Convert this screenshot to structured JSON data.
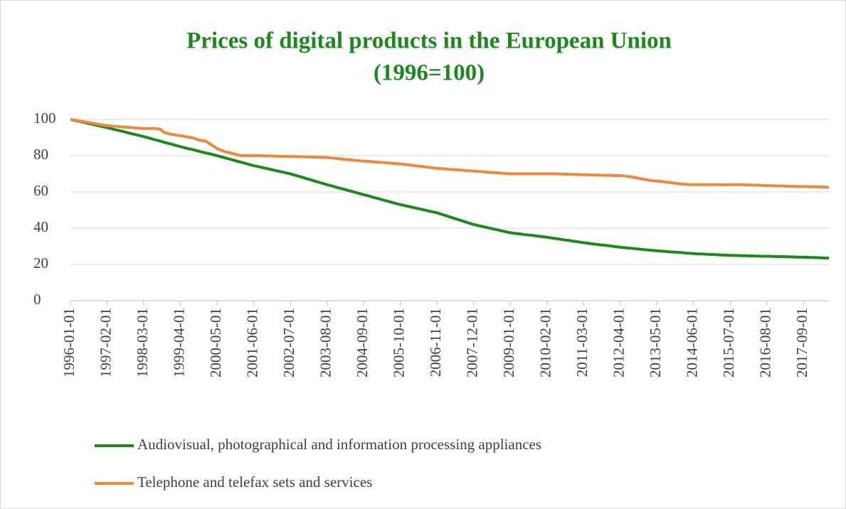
{
  "chart_data": {
    "type": "line",
    "title": "Prices of digital products in the European Union",
    "subtitle": "(1996=100)",
    "categories": [
      "1996-01-01",
      null,
      null,
      null,
      null,
      null,
      null,
      null,
      null,
      null,
      null,
      null,
      null,
      "1997-02-01",
      null,
      null,
      null,
      null,
      null,
      null,
      null,
      null,
      null,
      null,
      null,
      null,
      "1998-03-01",
      null,
      null,
      null,
      null,
      null,
      null,
      null,
      null,
      null,
      null,
      null,
      null,
      "1999-04-01",
      null,
      null,
      null,
      null,
      null,
      null,
      null,
      null,
      null,
      null,
      null,
      null,
      "2000-05-01",
      null,
      null,
      null,
      null,
      null,
      null,
      null,
      null,
      null,
      null,
      null,
      null,
      "2001-06-01",
      null,
      null,
      null,
      null,
      null,
      null,
      null,
      null,
      null,
      null,
      null,
      null,
      "2002-07-01",
      null,
      null,
      null,
      null,
      null,
      null,
      null,
      null,
      null,
      null,
      null,
      null,
      "2003-08-01",
      null,
      null,
      null,
      null,
      null,
      null,
      null,
      null,
      null,
      null,
      null,
      null,
      "2004-09-01",
      null,
      null,
      null,
      null,
      null,
      null,
      null,
      null,
      null,
      null,
      null,
      null,
      "2005-10-01",
      null,
      null,
      null,
      null,
      null,
      null,
      null,
      null,
      null,
      null,
      null,
      null,
      "2006-11-01",
      null,
      null,
      null,
      null,
      null,
      null,
      null,
      null,
      null,
      null,
      null,
      null,
      "2007-12-01",
      null,
      null,
      null,
      null,
      null,
      null,
      null,
      null,
      null,
      null,
      null,
      null,
      "2009-01-01",
      null,
      null,
      null,
      null,
      null,
      null,
      null,
      null,
      null,
      null,
      null,
      null,
      "2010-02-01",
      null,
      null,
      null,
      null,
      null,
      null,
      null,
      null,
      null,
      null,
      null,
      null,
      "2011-03-01",
      null,
      null,
      null,
      null,
      null,
      null,
      null,
      null,
      null,
      null,
      null,
      null,
      "2012-04-01",
      null,
      null,
      null,
      null,
      null,
      null,
      null,
      null,
      null,
      null,
      null,
      null,
      "2013-05-01",
      null,
      null,
      null,
      null,
      null,
      null,
      null,
      null,
      null,
      null,
      null,
      null,
      "2014-06-01",
      null,
      null,
      null,
      null,
      null,
      null,
      null,
      null,
      null,
      null,
      null,
      null,
      "2015-07-01",
      null,
      null,
      null,
      null,
      null,
      null,
      null,
      null,
      null,
      null,
      null,
      null,
      "2016-08-01",
      null,
      null,
      null,
      null,
      null,
      null,
      null,
      null,
      null,
      null,
      null,
      null,
      "2017-09-01",
      null,
      null,
      null,
      null,
      null,
      null,
      null,
      null,
      null
    ],
    "series": [
      {
        "name": "Audiovisual, photographical and information processing appliances",
        "color": "#1a8a1a",
        "values": [
          100,
          99.7,
          99.3,
          99,
          98.6,
          98.3,
          97.9,
          97.6,
          97.2,
          96.9,
          96.5,
          96.2,
          95.8,
          95.5,
          95.1,
          94.7,
          94.3,
          94,
          93.6,
          93.2,
          92.8,
          92.4,
          92,
          91.7,
          91.3,
          90.9,
          90.5,
          90.1,
          89.7,
          89.2,
          88.8,
          88.4,
          88,
          87.5,
          87.1,
          86.7,
          86.3,
          85.8,
          85.4,
          85,
          84.6,
          84.2,
          83.8,
          83.5,
          83.1,
          82.7,
          82.3,
          81.9,
          81.5,
          81.2,
          80.8,
          80.4,
          80,
          79.6,
          79.2,
          78.7,
          78.3,
          77.9,
          77.5,
          77,
          76.6,
          76.2,
          75.8,
          75.3,
          74.9,
          74.5,
          74.2,
          73.8,
          73.5,
          73.1,
          72.8,
          72.4,
          72.1,
          71.7,
          71.4,
          71,
          70.7,
          70.3,
          70,
          69.5,
          69.1,
          68.6,
          68.2,
          67.7,
          67.2,
          66.8,
          66.3,
          65.8,
          65.4,
          64.9,
          64.5,
          64,
          63.6,
          63.2,
          62.7,
          62.3,
          61.9,
          61.5,
          61,
          60.6,
          60.2,
          59.8,
          59.3,
          58.9,
          58.5,
          58.1,
          57.7,
          57.2,
          56.8,
          56.4,
          56,
          55.5,
          55.1,
          54.7,
          54.3,
          53.8,
          53.4,
          53,
          52.7,
          52.3,
          52,
          51.6,
          51.3,
          50.9,
          50.6,
          50.2,
          49.9,
          49.5,
          49.2,
          48.8,
          48.5,
          48,
          47.5,
          47,
          46.5,
          46,
          45.5,
          45,
          44.5,
          44,
          43.5,
          43,
          42.5,
          42,
          41.7,
          41.3,
          41,
          40.6,
          40.3,
          39.9,
          39.6,
          39.2,
          38.9,
          38.5,
          38.2,
          37.8,
          37.5,
          37.3,
          37.1,
          36.9,
          36.7,
          36.5,
          36.3,
          36.2,
          36,
          35.8,
          35.6,
          35.4,
          35.2,
          35,
          34.8,
          34.5,
          34.3,
          34.1,
          33.8,
          33.6,
          33.4,
          33.2,
          32.9,
          32.7,
          32.5,
          32.2,
          32,
          31.8,
          31.6,
          31.4,
          31.2,
          31,
          30.8,
          30.7,
          30.5,
          30.3,
          30.1,
          29.9,
          29.7,
          29.5,
          29.3,
          29.2,
          29,
          28.9,
          28.7,
          28.6,
          28.4,
          28.3,
          28.1,
          28,
          27.8,
          27.7,
          27.5,
          27.4,
          27.3,
          27.2,
          27,
          26.9,
          26.8,
          26.7,
          26.6,
          26.5,
          26.3,
          26.2,
          26.1,
          26,
          25.9,
          25.8,
          25.8,
          25.7,
          25.6,
          25.5,
          25.5,
          25.4,
          25.3,
          25.2,
          25.2,
          25.1,
          25,
          25,
          24.9,
          24.9,
          24.8,
          24.8,
          24.8,
          24.7,
          24.7,
          24.6,
          24.6,
          24.5,
          24.5,
          24.5,
          24.5,
          24.4,
          24.4,
          24.3,
          24.3,
          24.3,
          24.2,
          24.2,
          24.1,
          24.1,
          24,
          24,
          24,
          23.9,
          23.9,
          23.8,
          23.8,
          23.7,
          23.7,
          23.6,
          23.6,
          23.5
        ]
      },
      {
        "name": "Telephone and telefax sets and services",
        "color": "#f0883a",
        "values": [
          100,
          99.7,
          99.5,
          99.2,
          98.9,
          98.7,
          98.4,
          98.1,
          97.8,
          97.6,
          97.3,
          97,
          96.8,
          96.5,
          96.4,
          96.3,
          96.2,
          96.1,
          95.9,
          95.8,
          95.7,
          95.6,
          95.5,
          95.3,
          95.2,
          95.1,
          95,
          95,
          95,
          95,
          95,
          94.8,
          94.5,
          93,
          92.5,
          92,
          91.8,
          91.5,
          91.2,
          91,
          90.8,
          90.5,
          90.2,
          90,
          89.5,
          89,
          88.5,
          88.3,
          88,
          87,
          86,
          85,
          84,
          83.3,
          82.7,
          82.2,
          81.8,
          81.4,
          81,
          80.6,
          80.2,
          80,
          80,
          80,
          80,
          80,
          80,
          80,
          80,
          79.9,
          79.9,
          79.8,
          79.8,
          79.7,
          79.7,
          79.6,
          79.6,
          79.5,
          79.5,
          79.5,
          79.5,
          79.5,
          79.4,
          79.4,
          79.3,
          79.3,
          79.2,
          79.2,
          79.1,
          79.1,
          79,
          79,
          78.8,
          78.7,
          78.5,
          78.4,
          78.2,
          78,
          77.9,
          77.7,
          77.6,
          77.4,
          77.3,
          77.1,
          77,
          76.9,
          76.8,
          76.7,
          76.5,
          76.4,
          76.3,
          76.2,
          76.1,
          76,
          75.8,
          75.7,
          75.6,
          75.5,
          75.3,
          75.1,
          74.9,
          74.7,
          74.5,
          74.3,
          74.2,
          74,
          73.8,
          73.6,
          73.4,
          73.2,
          73,
          72.9,
          72.8,
          72.7,
          72.5,
          72.4,
          72.3,
          72.2,
          72.1,
          72,
          71.8,
          71.7,
          71.6,
          71.5,
          71.4,
          71.3,
          71.2,
          71,
          70.9,
          70.8,
          70.7,
          70.6,
          70.5,
          70.3,
          70.2,
          70.1,
          70,
          70,
          70,
          70,
          70,
          70,
          70,
          70,
          70,
          70,
          70,
          70,
          70,
          70,
          70,
          70,
          70,
          69.9,
          69.9,
          69.8,
          69.8,
          69.7,
          69.7,
          69.6,
          69.6,
          69.5,
          69.5,
          69.5,
          69.4,
          69.4,
          69.3,
          69.3,
          69.3,
          69.2,
          69.2,
          69.1,
          69.1,
          69,
          69,
          69,
          68.9,
          68.7,
          68.5,
          68.3,
          68,
          67.7,
          67.4,
          67.1,
          66.8,
          66.5,
          66.3,
          66.1,
          66,
          65.9,
          65.7,
          65.5,
          65.3,
          65.1,
          64.9,
          64.7,
          64.5,
          64.3,
          64.2,
          64.1,
          64,
          64,
          64,
          64,
          64,
          64,
          64,
          64,
          64,
          64,
          64,
          64,
          63.9,
          63.9,
          64,
          64,
          64,
          64,
          64,
          63.9,
          63.9,
          63.8,
          63.8,
          63.7,
          63.7,
          63.6,
          63.6,
          63.5,
          63.5,
          63.4,
          63.4,
          63.3,
          63.3,
          63.3,
          63.2,
          63.2,
          63.1,
          63.1,
          63,
          63,
          63,
          63,
          62.9,
          62.9,
          62.8,
          62.8,
          62.7,
          62.7,
          62.6,
          62.5
        ]
      }
    ],
    "ylim": [
      0,
      100
    ],
    "yticks": [
      0,
      20,
      40,
      60,
      80,
      100
    ],
    "grid": true,
    "legend": "bottom"
  }
}
